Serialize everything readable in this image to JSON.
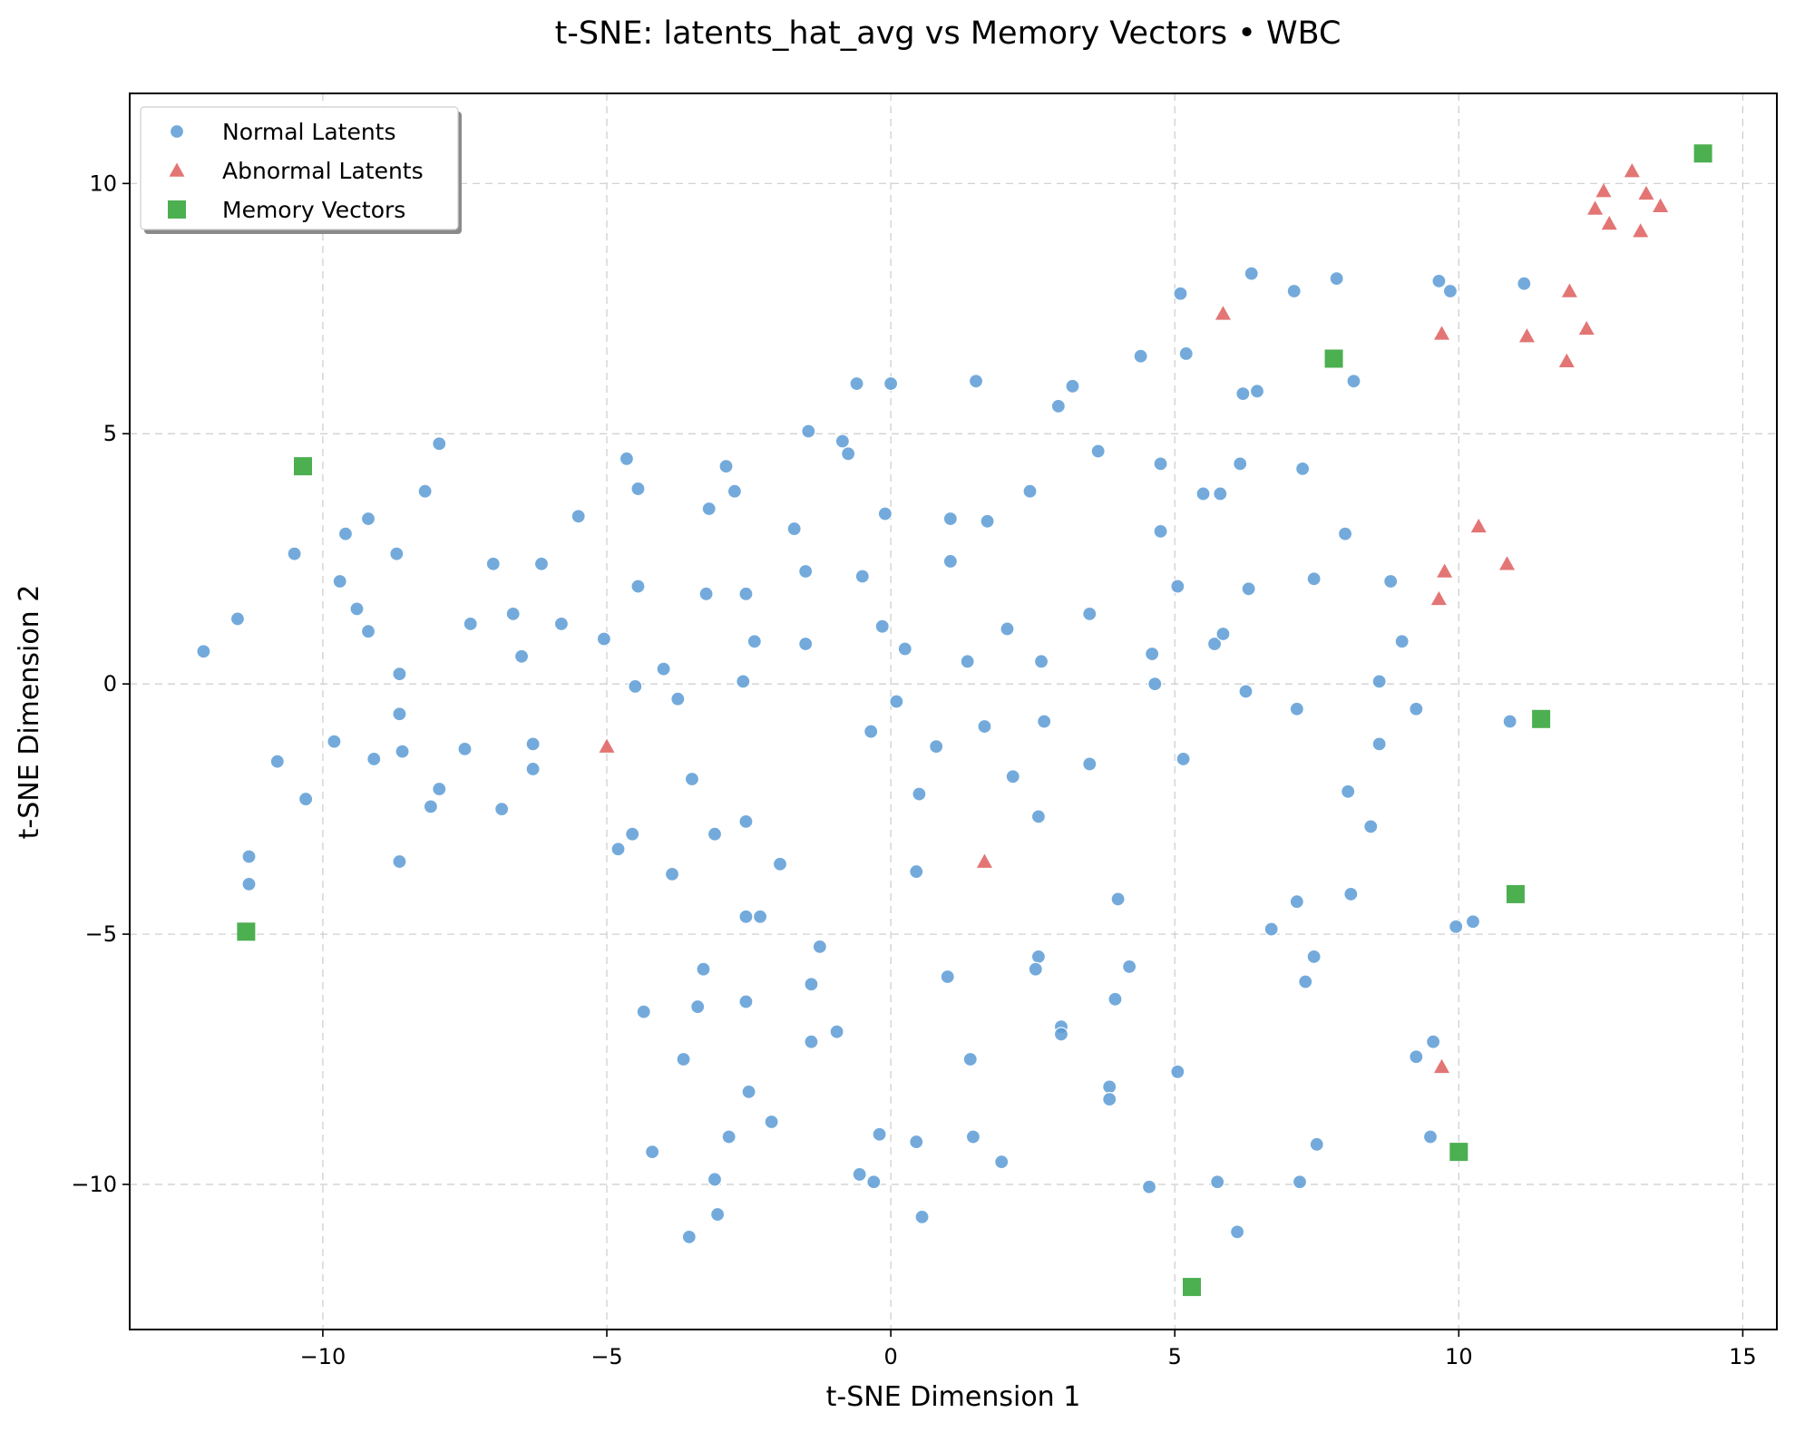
{
  "chart_data": {
    "type": "scatter",
    "title": "t-SNE: latents_hat_avg vs Memory Vectors • WBC",
    "xlabel": "t-SNE Dimension 1",
    "ylabel": "t-SNE Dimension 2",
    "xlim": [
      -13.4,
      15.6
    ],
    "ylim": [
      -12.9,
      11.8
    ],
    "xticks": [
      -10,
      -5,
      0,
      5,
      10,
      15
    ],
    "yticks": [
      -10,
      -5,
      0,
      5,
      10
    ],
    "xtick_labels": [
      "−10",
      "−5",
      "0",
      "5",
      "10",
      "15"
    ],
    "ytick_labels": [
      "−10",
      "−5",
      "0",
      "5",
      "10"
    ],
    "grid": true,
    "legend_position": "top-left",
    "series": [
      {
        "name": "Normal Latents",
        "marker": "circle",
        "color": "#5b9bd5",
        "points": [
          [
            -12.1,
            0.65
          ],
          [
            -11.5,
            1.3
          ],
          [
            -11.3,
            -3.45
          ],
          [
            -11.3,
            -4.0
          ],
          [
            -10.8,
            -1.55
          ],
          [
            -10.5,
            2.6
          ],
          [
            -10.3,
            -2.3
          ],
          [
            -9.8,
            -1.15
          ],
          [
            -9.7,
            2.05
          ],
          [
            -9.6,
            3.0
          ],
          [
            -9.4,
            1.5
          ],
          [
            -9.2,
            1.05
          ],
          [
            -9.2,
            3.3
          ],
          [
            -9.1,
            -1.5
          ],
          [
            -8.7,
            2.6
          ],
          [
            -8.65,
            0.2
          ],
          [
            -8.65,
            -0.6
          ],
          [
            -8.6,
            -1.35
          ],
          [
            -8.65,
            -3.55
          ],
          [
            -8.2,
            3.85
          ],
          [
            -8.1,
            -2.45
          ],
          [
            -7.95,
            4.8
          ],
          [
            -7.95,
            -2.1
          ],
          [
            -7.5,
            -1.3
          ],
          [
            -7.4,
            1.2
          ],
          [
            -7.0,
            2.4
          ],
          [
            -6.85,
            -2.5
          ],
          [
            -6.65,
            1.4
          ],
          [
            -6.5,
            0.55
          ],
          [
            -6.3,
            -1.7
          ],
          [
            -6.3,
            -1.2
          ],
          [
            -6.15,
            2.4
          ],
          [
            -5.8,
            1.2
          ],
          [
            -5.5,
            3.35
          ],
          [
            -5.05,
            0.9
          ],
          [
            -4.8,
            -3.3
          ],
          [
            -4.65,
            4.5
          ],
          [
            -4.55,
            -3.0
          ],
          [
            -4.5,
            -0.05
          ],
          [
            -4.45,
            1.95
          ],
          [
            -4.45,
            3.9
          ],
          [
            -4.35,
            -6.55
          ],
          [
            -4.2,
            -9.35
          ],
          [
            -4.0,
            0.3
          ],
          [
            -3.85,
            -3.8
          ],
          [
            -3.75,
            -0.3
          ],
          [
            -3.65,
            -7.5
          ],
          [
            -3.55,
            -11.05
          ],
          [
            -3.5,
            -1.9
          ],
          [
            -3.4,
            -6.45
          ],
          [
            -3.3,
            -5.7
          ],
          [
            -3.25,
            1.8
          ],
          [
            -3.2,
            3.5
          ],
          [
            -3.1,
            -3.0
          ],
          [
            -3.1,
            -9.9
          ],
          [
            -3.05,
            -10.6
          ],
          [
            -2.9,
            4.35
          ],
          [
            -2.85,
            -9.05
          ],
          [
            -2.75,
            3.85
          ],
          [
            -2.6,
            0.05
          ],
          [
            -2.55,
            1.8
          ],
          [
            -2.55,
            -2.75
          ],
          [
            -2.55,
            -4.65
          ],
          [
            -2.55,
            -6.35
          ],
          [
            -2.5,
            -8.15
          ],
          [
            -2.4,
            0.85
          ],
          [
            -2.3,
            -4.65
          ],
          [
            -2.1,
            -8.75
          ],
          [
            -1.95,
            -3.6
          ],
          [
            -1.7,
            3.1
          ],
          [
            -1.5,
            0.8
          ],
          [
            -1.5,
            2.25
          ],
          [
            -1.45,
            5.05
          ],
          [
            -1.4,
            -6.0
          ],
          [
            -1.4,
            -7.15
          ],
          [
            -1.25,
            -5.25
          ],
          [
            -0.95,
            -6.95
          ],
          [
            -0.85,
            4.85
          ],
          [
            -0.75,
            4.6
          ],
          [
            -0.6,
            6.0
          ],
          [
            -0.55,
            -9.8
          ],
          [
            -0.5,
            2.15
          ],
          [
            -0.35,
            -0.95
          ],
          [
            -0.3,
            -9.95
          ],
          [
            -0.2,
            -9.0
          ],
          [
            -0.15,
            1.15
          ],
          [
            -0.1,
            3.4
          ],
          [
            0.0,
            6.0
          ],
          [
            0.1,
            -0.35
          ],
          [
            0.25,
            0.7
          ],
          [
            0.45,
            -9.15
          ],
          [
            0.45,
            -3.75
          ],
          [
            0.5,
            -2.2
          ],
          [
            0.55,
            -10.65
          ],
          [
            0.8,
            -1.25
          ],
          [
            1.0,
            -5.85
          ],
          [
            1.05,
            2.45
          ],
          [
            1.05,
            3.3
          ],
          [
            1.35,
            0.45
          ],
          [
            1.4,
            -7.5
          ],
          [
            1.45,
            -9.05
          ],
          [
            1.5,
            6.05
          ],
          [
            1.65,
            -0.85
          ],
          [
            1.7,
            3.25
          ],
          [
            1.95,
            -9.55
          ],
          [
            2.05,
            1.1
          ],
          [
            2.15,
            -1.85
          ],
          [
            2.45,
            3.85
          ],
          [
            2.6,
            -2.65
          ],
          [
            2.6,
            -5.45
          ],
          [
            2.65,
            0.45
          ],
          [
            2.7,
            -0.75
          ],
          [
            2.55,
            -5.7
          ],
          [
            2.95,
            5.55
          ],
          [
            3.0,
            -6.85
          ],
          [
            3.0,
            -7.0
          ],
          [
            3.2,
            5.95
          ],
          [
            3.5,
            1.4
          ],
          [
            3.5,
            -1.6
          ],
          [
            3.65,
            4.65
          ],
          [
            3.85,
            -8.05
          ],
          [
            3.85,
            -8.3
          ],
          [
            3.95,
            -6.3
          ],
          [
            4.0,
            -4.3
          ],
          [
            4.2,
            -5.65
          ],
          [
            4.4,
            6.55
          ],
          [
            4.55,
            -10.05
          ],
          [
            4.6,
            0.6
          ],
          [
            4.65,
            0.0
          ],
          [
            4.75,
            4.4
          ],
          [
            4.75,
            3.05
          ],
          [
            5.05,
            1.95
          ],
          [
            5.05,
            -7.75
          ],
          [
            5.1,
            7.8
          ],
          [
            5.15,
            -1.5
          ],
          [
            5.2,
            6.6
          ],
          [
            5.5,
            3.8
          ],
          [
            5.7,
            0.8
          ],
          [
            5.75,
            -9.95
          ],
          [
            5.8,
            3.8
          ],
          [
            5.85,
            1.0
          ],
          [
            6.1,
            -10.95
          ],
          [
            6.15,
            4.4
          ],
          [
            6.2,
            5.8
          ],
          [
            6.25,
            -0.15
          ],
          [
            6.3,
            1.9
          ],
          [
            6.35,
            8.2
          ],
          [
            6.45,
            5.85
          ],
          [
            6.7,
            -4.9
          ],
          [
            7.1,
            7.85
          ],
          [
            7.15,
            -0.5
          ],
          [
            7.15,
            -4.35
          ],
          [
            7.2,
            -9.95
          ],
          [
            7.25,
            4.3
          ],
          [
            7.3,
            -5.95
          ],
          [
            7.45,
            2.1
          ],
          [
            7.45,
            -5.45
          ],
          [
            7.5,
            -9.2
          ],
          [
            7.85,
            8.1
          ],
          [
            8.0,
            3.0
          ],
          [
            8.05,
            -2.15
          ],
          [
            8.1,
            -4.2
          ],
          [
            8.15,
            6.05
          ],
          [
            8.45,
            -2.85
          ],
          [
            8.6,
            0.05
          ],
          [
            8.6,
            -1.2
          ],
          [
            8.8,
            2.05
          ],
          [
            9.0,
            0.85
          ],
          [
            9.25,
            -7.45
          ],
          [
            9.25,
            -0.5
          ],
          [
            9.5,
            -9.05
          ],
          [
            9.55,
            -7.15
          ],
          [
            9.65,
            8.05
          ],
          [
            9.85,
            7.85
          ],
          [
            9.95,
            -4.85
          ],
          [
            10.25,
            -4.75
          ],
          [
            10.9,
            -0.75
          ],
          [
            11.15,
            8.0
          ]
        ]
      },
      {
        "name": "Abnormal Latents",
        "marker": "triangle",
        "color": "#e06666",
        "points": [
          [
            -5.0,
            -1.25
          ],
          [
            1.65,
            -3.55
          ],
          [
            5.85,
            7.4
          ],
          [
            9.65,
            1.7
          ],
          [
            9.7,
            7.0
          ],
          [
            9.7,
            -7.65
          ],
          [
            9.75,
            2.25
          ],
          [
            10.35,
            3.15
          ],
          [
            10.85,
            2.4
          ],
          [
            11.2,
            6.95
          ],
          [
            11.9,
            6.45
          ],
          [
            11.95,
            7.85
          ],
          [
            12.25,
            7.1
          ],
          [
            12.4,
            9.5
          ],
          [
            12.55,
            9.85
          ],
          [
            12.65,
            9.2
          ],
          [
            13.05,
            10.25
          ],
          [
            13.2,
            9.05
          ],
          [
            13.3,
            9.8
          ],
          [
            13.55,
            9.55
          ]
        ]
      },
      {
        "name": "Memory Vectors",
        "marker": "square",
        "color": "#4caf50",
        "points": [
          [
            -10.35,
            4.35
          ],
          [
            -11.35,
            -4.95
          ],
          [
            7.8,
            6.5
          ],
          [
            11.45,
            -0.7
          ],
          [
            11.0,
            -4.2
          ],
          [
            10.0,
            -9.35
          ],
          [
            5.3,
            -12.05
          ],
          [
            14.3,
            10.6
          ]
        ]
      }
    ]
  }
}
